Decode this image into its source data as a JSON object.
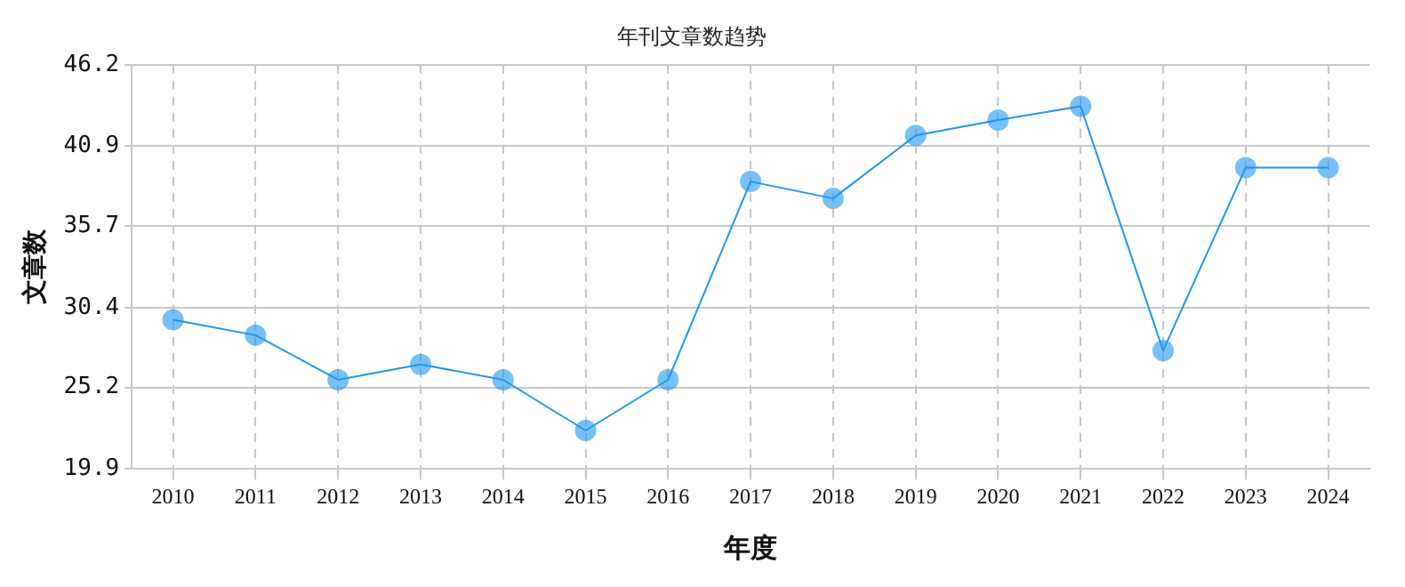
{
  "chart_data": {
    "type": "line",
    "title": "年刊文章数趋势",
    "xlabel": "年度",
    "ylabel": "文章数",
    "categories": [
      "2010",
      "2011",
      "2012",
      "2013",
      "2014",
      "2015",
      "2016",
      "2017",
      "2018",
      "2019",
      "2020",
      "2021",
      "2022",
      "2023",
      "2024"
    ],
    "series": [
      {
        "color": "#1e96f0",
        "values": [
          29.6,
          28.6,
          25.7,
          26.7,
          25.7,
          22.4,
          25.7,
          38.6,
          37.5,
          41.6,
          42.6,
          43.5,
          27.6,
          39.5,
          39.5
        ]
      }
    ],
    "ylim": [
      19.9,
      46.2
    ],
    "yticks": [
      19.9,
      25.2,
      30.4,
      35.7,
      40.9,
      46.2
    ],
    "grid": true,
    "legend": false,
    "marker": "circle",
    "line_style": "solid"
  }
}
